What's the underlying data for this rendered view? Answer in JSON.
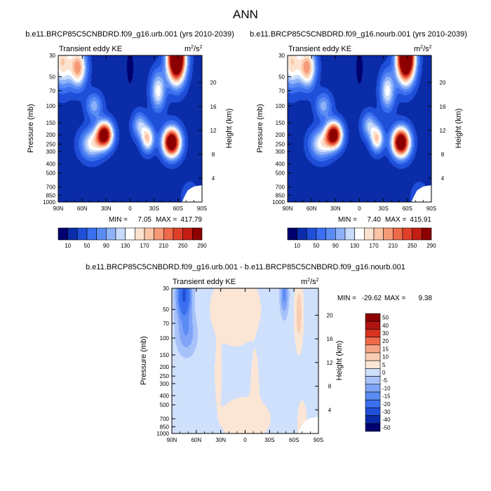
{
  "figure": {
    "title": "ANN"
  },
  "colors": {
    "top_palette": [
      "#00006e",
      "#0a2ca8",
      "#1f4fd8",
      "#3a6ff0",
      "#5a8cf4",
      "#8eb2f7",
      "#c8dbfb",
      "#ffffff",
      "#fde3cf",
      "#fbc4a6",
      "#f59a76",
      "#ef6a4a",
      "#e0402a",
      "#c41e14",
      "#8c0000"
    ],
    "diff_palette": [
      "#00006e",
      "#0a2ca8",
      "#1f4fd8",
      "#3a6ff0",
      "#5a8cf4",
      "#7fa3f6",
      "#a7c2f9",
      "#cfe0fc",
      "#fbe6d6",
      "#f8cdb2",
      "#f5a585",
      "#ef6a4a",
      "#d8331f",
      "#b01410",
      "#8c0000"
    ]
  },
  "chart_data": [
    {
      "type": "heatmap",
      "title": "b.e11.BRCP85C5CNBDRD.f09_g16.urb.001 (yrs 2010-2039)",
      "subtitle": "Transient eddy KE",
      "units": "m2/s2",
      "xlabel": "",
      "ylabel": "Pressure (mb)",
      "ylabel_right": "Height (km)",
      "x_ticks": [
        "90N",
        "60N",
        "30N",
        "0",
        "30S",
        "60S",
        "90S"
      ],
      "x_range": [
        90,
        -90
      ],
      "y_ticks": [
        30,
        50,
        70,
        100,
        150,
        200,
        250,
        300,
        400,
        500,
        700,
        850,
        1000
      ],
      "y_range": [
        1000,
        30
      ],
      "y_scale": "log",
      "height_ticks": [
        4,
        8,
        12,
        16,
        20
      ],
      "stats": {
        "min_label": "MIN =",
        "min": "7.05",
        "max_label": "MAX =",
        "max": "417.79"
      },
      "colorbar": {
        "levels": [
          10,
          30,
          50,
          70,
          90,
          110,
          130,
          150,
          170,
          190,
          210,
          230,
          250,
          270,
          290
        ],
        "tick_labels": [
          "10",
          "50",
          "90",
          "130",
          "170",
          "210",
          "250",
          "290"
        ]
      },
      "features": [
        {
          "feature": "NH subtropical jet max",
          "lat": 32,
          "p": 200,
          "value": 300
        },
        {
          "feature": "SH subtropical jet max",
          "lat": -55,
          "p": 250,
          "value": 320
        },
        {
          "feature": "NH stratospheric max",
          "lat": 80,
          "p": 32,
          "value": 230
        },
        {
          "feature": "SH stratospheric max",
          "lat": -60,
          "p": 32,
          "value": 410
        }
      ]
    },
    {
      "type": "heatmap",
      "title": "b.e11.BRCP85C5CNBDRD.f09_g16.nourb.001 (yrs 2010-2039)",
      "subtitle": "Transient eddy KE",
      "units": "m2/s2",
      "xlabel": "",
      "ylabel": "Pressure (mb)",
      "ylabel_right": "Height (km)",
      "x_ticks": [
        "90N",
        "60N",
        "30N",
        "0",
        "30S",
        "60S",
        "90S"
      ],
      "x_range": [
        90,
        -90
      ],
      "y_ticks": [
        30,
        50,
        70,
        100,
        150,
        200,
        250,
        300,
        400,
        500,
        700,
        850,
        1000
      ],
      "y_range": [
        1000,
        30
      ],
      "y_scale": "log",
      "height_ticks": [
        4,
        8,
        12,
        16,
        20
      ],
      "stats": {
        "min_label": "MIN =",
        "min": "7.40",
        "max_label": "MAX =",
        "max": "415.91"
      },
      "colorbar": {
        "levels": [
          10,
          30,
          50,
          70,
          90,
          110,
          130,
          150,
          170,
          190,
          210,
          230,
          250,
          270,
          290
        ],
        "tick_labels": [
          "10",
          "50",
          "90",
          "130",
          "170",
          "210",
          "250",
          "290"
        ]
      },
      "features": [
        {
          "feature": "NH subtropical jet max",
          "lat": 32,
          "p": 200,
          "value": 300
        },
        {
          "feature": "SH subtropical jet max",
          "lat": -55,
          "p": 250,
          "value": 320
        },
        {
          "feature": "NH stratospheric max",
          "lat": 80,
          "p": 32,
          "value": 230
        },
        {
          "feature": "SH stratospheric max",
          "lat": -60,
          "p": 32,
          "value": 410
        }
      ]
    },
    {
      "type": "heatmap",
      "title": "b.e11.BRCP85C5CNBDRD.f09_g16.urb.001 - b.e11.BRCP85C5CNBDRD.f09_g16.nourb.001",
      "subtitle": "Transient eddy KE",
      "units": "m2/s2",
      "xlabel": "",
      "ylabel": "Pressure (mb)",
      "ylabel_right": "Height (km)",
      "x_ticks": [
        "90N",
        "60N",
        "30N",
        "0",
        "30S",
        "60S",
        "90S"
      ],
      "x_range": [
        90,
        -90
      ],
      "y_ticks": [
        30,
        50,
        70,
        100,
        150,
        200,
        250,
        300,
        400,
        500,
        700,
        850,
        1000
      ],
      "y_range": [
        1000,
        30
      ],
      "y_scale": "log",
      "height_ticks": [
        4,
        8,
        12,
        16,
        20
      ],
      "stats": {
        "min_label": "MIN =",
        "min": "-29.62",
        "max_label": "MAX =",
        "max": "9.38"
      },
      "colorbar": {
        "levels": [
          -50,
          -40,
          -30,
          -20,
          -15,
          -10,
          -5,
          0,
          5,
          10,
          15,
          20,
          30,
          40,
          50
        ],
        "tick_labels": [
          "50",
          "40",
          "30",
          "20",
          "15",
          "10",
          "5",
          "0",
          "-5",
          "-10",
          "-15",
          "-20",
          "-30",
          "-40",
          "-50"
        ]
      },
      "features": [
        {
          "feature": "NH stratospheric negative",
          "lat": 75,
          "p": 35,
          "value": -28
        },
        {
          "feature": "SH stratospheric negative",
          "lat": -48,
          "p": 35,
          "value": -15
        },
        {
          "feature": "SH stratospheric positive",
          "lat": -67,
          "p": 50,
          "value": 8
        },
        {
          "feature": "Tropical positive band",
          "lat": 12,
          "p": 50,
          "value": 3
        }
      ]
    }
  ]
}
